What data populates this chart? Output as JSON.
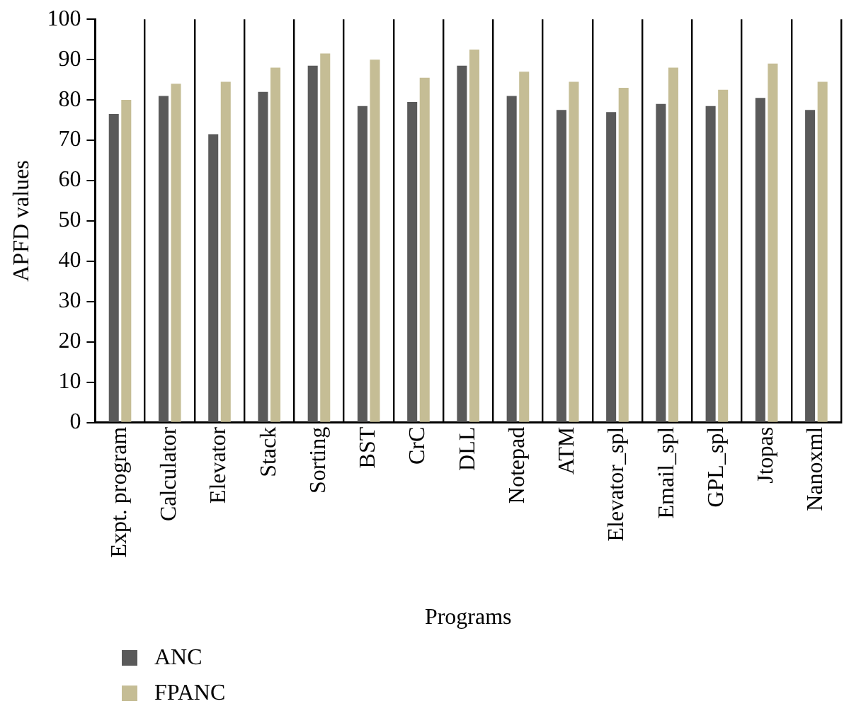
{
  "chart_data": {
    "type": "bar",
    "xlabel": "Programs",
    "ylabel": "APFD values",
    "categories": [
      "Expt. program",
      "Calculator",
      "Elevator",
      "Stack",
      "Sorting",
      "BST",
      "CrC",
      "DLL",
      "Notepad",
      "ATM",
      "Elevator_spl",
      "Email_spl",
      "GPL_spl",
      "Jtopas",
      "Nanoxml"
    ],
    "series": [
      {
        "name": "ANC",
        "color": "#5a5a5a",
        "values": [
          76.5,
          81,
          71.5,
          82,
          88.5,
          78.5,
          79.5,
          88.5,
          81,
          77.5,
          77,
          79,
          78.5,
          80.5,
          77.5
        ]
      },
      {
        "name": "FPANC",
        "color": "#c5bd95",
        "values": [
          80,
          84,
          84.5,
          88,
          91.5,
          90,
          85.5,
          92.5,
          87,
          84.5,
          83,
          88,
          82.5,
          89,
          84.5
        ]
      }
    ],
    "ylim": [
      0,
      100
    ],
    "yticks": [
      0,
      10,
      20,
      30,
      40,
      50,
      60,
      70,
      80,
      90,
      100
    ],
    "grid": "x",
    "legend": "bottom left"
  }
}
